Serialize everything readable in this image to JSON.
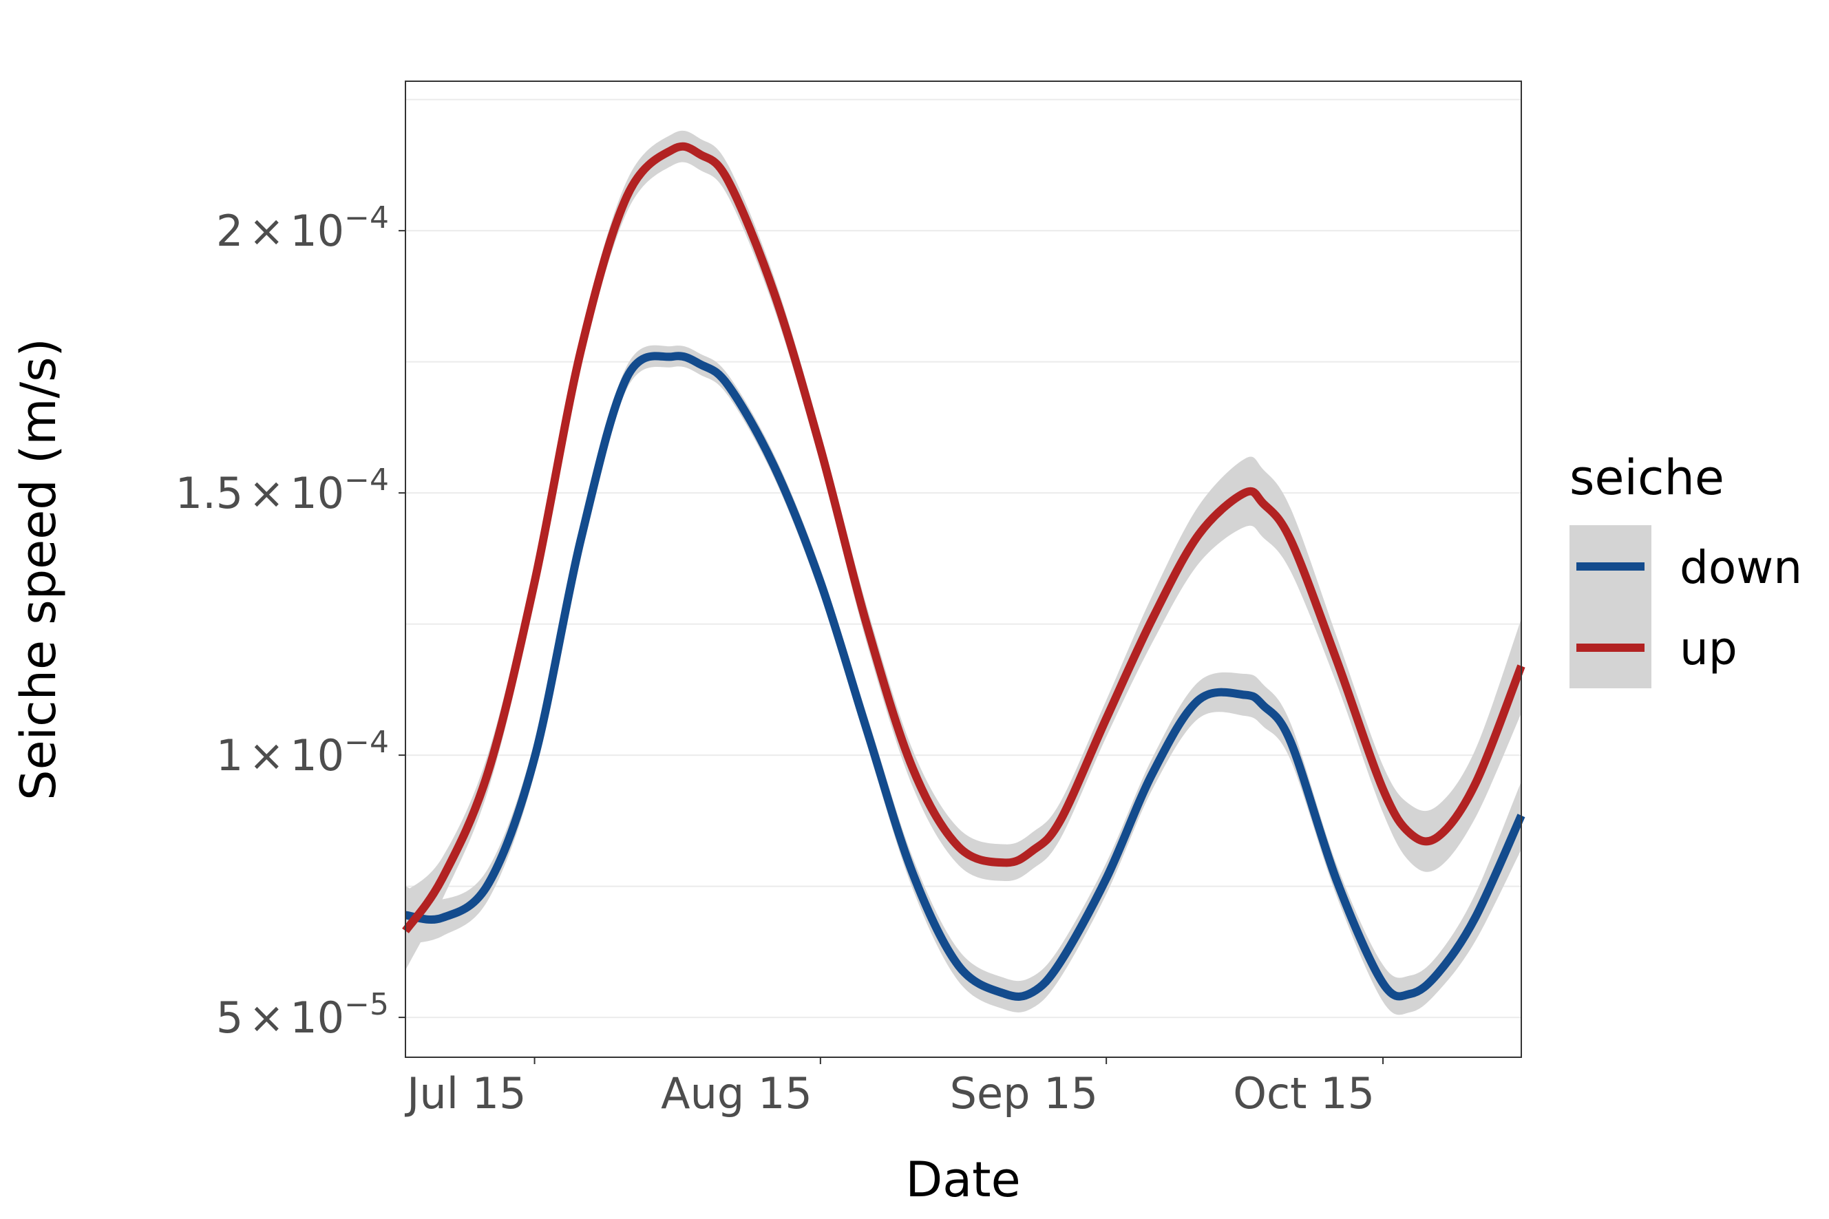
{
  "chart_data": {
    "type": "line",
    "title": "",
    "xlabel": "Date",
    "ylabel": "Seiche speed (m/s)",
    "x_axis": {
      "type": "date",
      "range": [
        "2023-07-01",
        "2023-10-30"
      ],
      "ticks": [
        {
          "value": "2023-07-15",
          "label": "Jul 15"
        },
        {
          "value": "2023-08-15",
          "label": "Aug 15"
        },
        {
          "value": "2023-09-15",
          "label": "Sep 15"
        },
        {
          "value": "2023-10-15",
          "label": "Oct 15"
        }
      ]
    },
    "y_axis": {
      "range": [
        4.24e-05,
        0.0002285
      ],
      "ticks": [
        {
          "value": 5e-05,
          "mantissa": "5",
          "exponent": "−5"
        },
        {
          "value": 0.0001,
          "mantissa": "1",
          "exponent": "−4"
        },
        {
          "value": 0.00015,
          "mantissa": "1.5",
          "exponent": "−4"
        },
        {
          "value": 0.0002,
          "mantissa": "2",
          "exponent": "−4"
        }
      ],
      "times_sign": "×",
      "base": "10"
    },
    "grid": true,
    "confidence_band": true,
    "legend": {
      "title": "seiche",
      "position": "right"
    },
    "series": [
      {
        "name": "down",
        "color": "#134b8d",
        "x": [
          "2023-07-01",
          "2023-07-05",
          "2023-07-10",
          "2023-07-15",
          "2023-07-20",
          "2023-07-25",
          "2023-07-30",
          "2023-08-02",
          "2023-08-05",
          "2023-08-10",
          "2023-08-15",
          "2023-08-20",
          "2023-08-25",
          "2023-08-30",
          "2023-09-04",
          "2023-09-07",
          "2023-09-10",
          "2023-09-15",
          "2023-09-20",
          "2023-09-25",
          "2023-09-30",
          "2023-10-02",
          "2023-10-05",
          "2023-10-10",
          "2023-10-15",
          "2023-10-18",
          "2023-10-21",
          "2023-10-25",
          "2023-10-30"
        ],
        "values": [
          6.95e-05,
          6.9e-05,
          7.55e-05,
          9.95e-05,
          0.000141,
          0.000172,
          0.000176,
          0.0001745,
          0.0001705,
          0.000155,
          0.000133,
          0.000105,
          7.75e-05,
          5.98e-05,
          5.45e-05,
          5.48e-05,
          6.05e-05,
          7.65e-05,
          9.65e-05,
          0.0001105,
          0.0001115,
          0.0001095,
          0.0001025,
          7.6e-05,
          5.65e-05,
          5.45e-05,
          5.85e-05,
          6.9e-05,
          8.85e-05
        ],
        "band_halfwidth": [
          5.5e-06,
          3.5e-06,
          3e-06,
          3e-06,
          2.5e-06,
          2.2e-06,
          2e-06,
          2e-06,
          2e-06,
          2.2e-06,
          2.5e-06,
          2.8e-06,
          3e-06,
          3e-06,
          3e-06,
          3e-06,
          3e-06,
          3e-06,
          3e-06,
          3.5e-06,
          4e-06,
          4e-06,
          3.5e-06,
          3e-06,
          3.5e-06,
          3.5e-06,
          3.5e-06,
          4.5e-06,
          6.5e-06
        ]
      },
      {
        "name": "up",
        "color": "#b22222",
        "x": [
          "2023-07-01",
          "2023-07-05",
          "2023-07-10",
          "2023-07-15",
          "2023-07-20",
          "2023-07-25",
          "2023-07-30",
          "2023-08-02",
          "2023-08-05",
          "2023-08-10",
          "2023-08-15",
          "2023-08-20",
          "2023-08-25",
          "2023-08-30",
          "2023-09-04",
          "2023-09-07",
          "2023-09-10",
          "2023-09-15",
          "2023-09-20",
          "2023-09-25",
          "2023-09-30",
          "2023-10-02",
          "2023-10-05",
          "2023-10-10",
          "2023-10-15",
          "2023-10-18",
          "2023-10-21",
          "2023-10-25",
          "2023-10-30"
        ],
        "values": [
          6.65e-05,
          7.65e-05,
          9.7e-05,
          0.000133,
          0.000177,
          0.0002065,
          0.0002155,
          0.0002145,
          0.0002095,
          0.000188,
          0.0001585,
          0.000125,
          9.75e-05,
          8.25e-05,
          7.95e-05,
          8.18e-05,
          8.75e-05,
          0.000107,
          0.000126,
          0.000142,
          0.00015,
          0.000148,
          0.000141,
          0.000118,
          9.35e-05,
          8.5e-05,
          8.45e-05,
          9.45e-05,
          0.000117
        ],
        "band_halfwidth": [
          7.5e-06,
          4e-06,
          3.5e-06,
          3.5e-06,
          3e-06,
          3e-06,
          3e-06,
          3e-06,
          3e-06,
          3e-06,
          3e-06,
          3.5e-06,
          3.5e-06,
          3.5e-06,
          3.5e-06,
          3.5e-06,
          3.5e-06,
          3.5e-06,
          4.5e-06,
          5.5e-06,
          6.5e-06,
          6.5e-06,
          6e-06,
          4.5e-06,
          4.5e-06,
          5.5e-06,
          6e-06,
          6.5e-06,
          9e-06
        ]
      }
    ]
  }
}
